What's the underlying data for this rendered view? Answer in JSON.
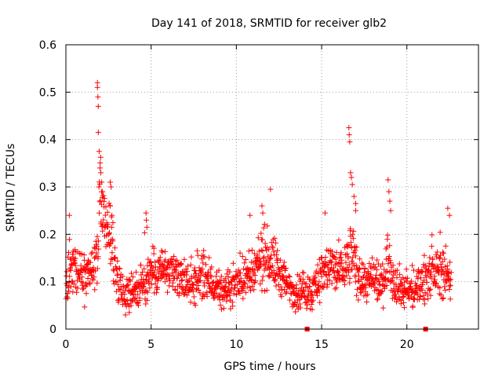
{
  "chart_data": {
    "type": "scatter",
    "title": "Day 141 of 2018, SRMTID for receiver glb2",
    "xlabel": "GPS time / hours",
    "ylabel": "SRMTID / TECUs",
    "xlim": [
      0,
      24.2
    ],
    "ylim": [
      0,
      0.6
    ],
    "x_ticks": [
      0,
      5,
      10,
      15,
      20
    ],
    "y_ticks": [
      0,
      0.1,
      0.2,
      0.3,
      0.4,
      0.5,
      0.6
    ],
    "x_tick_labels": [
      "0",
      "5",
      "10",
      "15",
      "20"
    ],
    "y_tick_labels": [
      "0",
      "0.1",
      "0.2",
      "0.3",
      "0.4",
      "0.5",
      "0.6"
    ],
    "grid": true,
    "marker": "+",
    "color": "#ff0000",
    "x_range_of_points": [
      0,
      22.6
    ],
    "profile": [
      [
        0.0,
        0.11
      ],
      [
        0.5,
        0.12
      ],
      [
        1.0,
        0.11
      ],
      [
        1.5,
        0.11
      ],
      [
        1.9,
        0.15
      ],
      [
        2.0,
        0.3
      ],
      [
        2.3,
        0.22
      ],
      [
        2.6,
        0.2
      ],
      [
        3.0,
        0.11
      ],
      [
        3.5,
        0.07
      ],
      [
        4.0,
        0.08
      ],
      [
        4.5,
        0.09
      ],
      [
        5.0,
        0.12
      ],
      [
        5.5,
        0.13
      ],
      [
        6.0,
        0.12
      ],
      [
        6.5,
        0.11
      ],
      [
        7.0,
        0.1
      ],
      [
        7.5,
        0.1
      ],
      [
        8.0,
        0.11
      ],
      [
        8.5,
        0.1
      ],
      [
        9.0,
        0.08
      ],
      [
        9.5,
        0.08
      ],
      [
        10.0,
        0.1
      ],
      [
        10.5,
        0.11
      ],
      [
        11.0,
        0.11
      ],
      [
        11.5,
        0.15
      ],
      [
        12.0,
        0.15
      ],
      [
        12.5,
        0.12
      ],
      [
        13.0,
        0.09
      ],
      [
        13.5,
        0.08
      ],
      [
        14.0,
        0.08
      ],
      [
        14.5,
        0.08
      ],
      [
        15.0,
        0.12
      ],
      [
        15.5,
        0.13
      ],
      [
        16.0,
        0.12
      ],
      [
        16.5,
        0.14
      ],
      [
        16.8,
        0.17
      ],
      [
        17.0,
        0.12
      ],
      [
        17.5,
        0.1
      ],
      [
        18.0,
        0.1
      ],
      [
        18.5,
        0.09
      ],
      [
        18.9,
        0.15
      ],
      [
        19.2,
        0.11
      ],
      [
        19.5,
        0.09
      ],
      [
        20.0,
        0.08
      ],
      [
        20.5,
        0.08
      ],
      [
        21.0,
        0.11
      ],
      [
        21.5,
        0.12
      ],
      [
        22.0,
        0.12
      ],
      [
        22.6,
        0.11
      ]
    ],
    "peak_points": [
      {
        "x": 1.85,
        "y": 0.52
      },
      {
        "x": 1.85,
        "y": 0.51
      },
      {
        "x": 1.88,
        "y": 0.49
      },
      {
        "x": 1.9,
        "y": 0.47
      },
      {
        "x": 1.9,
        "y": 0.415
      },
      {
        "x": 1.95,
        "y": 0.375
      },
      {
        "x": 2.0,
        "y": 0.34
      },
      {
        "x": 2.05,
        "y": 0.33
      },
      {
        "x": 2.1,
        "y": 0.31
      },
      {
        "x": 2.15,
        "y": 0.29
      },
      {
        "x": 2.6,
        "y": 0.31
      },
      {
        "x": 2.65,
        "y": 0.3
      },
      {
        "x": 2.6,
        "y": 0.26
      },
      {
        "x": 2.7,
        "y": 0.24
      },
      {
        "x": 4.7,
        "y": 0.245
      },
      {
        "x": 4.72,
        "y": 0.23
      },
      {
        "x": 4.75,
        "y": 0.215
      },
      {
        "x": 11.5,
        "y": 0.26
      },
      {
        "x": 12.0,
        "y": 0.295
      },
      {
        "x": 11.55,
        "y": 0.245
      },
      {
        "x": 16.6,
        "y": 0.425
      },
      {
        "x": 16.62,
        "y": 0.41
      },
      {
        "x": 16.65,
        "y": 0.395
      },
      {
        "x": 16.7,
        "y": 0.33
      },
      {
        "x": 16.75,
        "y": 0.32
      },
      {
        "x": 16.8,
        "y": 0.305
      },
      {
        "x": 16.9,
        "y": 0.28
      },
      {
        "x": 17.0,
        "y": 0.265
      },
      {
        "x": 17.0,
        "y": 0.25
      },
      {
        "x": 18.9,
        "y": 0.315
      },
      {
        "x": 18.95,
        "y": 0.29
      },
      {
        "x": 19.0,
        "y": 0.27
      },
      {
        "x": 19.05,
        "y": 0.25
      },
      {
        "x": 15.2,
        "y": 0.245
      },
      {
        "x": 10.8,
        "y": 0.24
      },
      {
        "x": 0.2,
        "y": 0.24
      },
      {
        "x": 22.4,
        "y": 0.255
      },
      {
        "x": 22.5,
        "y": 0.24
      }
    ],
    "baseline_markers": [
      {
        "x": 14.15,
        "y": 0
      },
      {
        "x": 21.1,
        "y": 0
      }
    ]
  }
}
